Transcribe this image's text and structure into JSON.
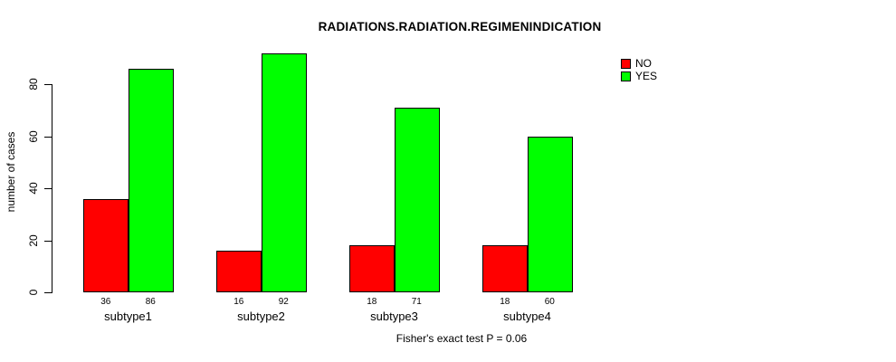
{
  "chart_data": {
    "type": "bar",
    "title": "RADIATIONS.RADIATION.REGIMENINDICATION",
    "xlabel": "",
    "ylabel": "number of cases",
    "caption": "Fisher's exact test P = 0.06",
    "categories": [
      "subtype1",
      "subtype2",
      "subtype3",
      "subtype4"
    ],
    "series": [
      {
        "name": "NO",
        "color": "#ff0000",
        "values": [
          36,
          16,
          18,
          18
        ]
      },
      {
        "name": "YES",
        "color": "#00ff00",
        "values": [
          86,
          92,
          71,
          60
        ]
      }
    ],
    "yticks": [
      0,
      20,
      40,
      60,
      80
    ],
    "ylim": [
      0,
      92
    ],
    "bar_value_labels": true,
    "grid": false,
    "legend_position": "top-right",
    "background_color": "#ffffff",
    "axis_color": "#000000"
  }
}
